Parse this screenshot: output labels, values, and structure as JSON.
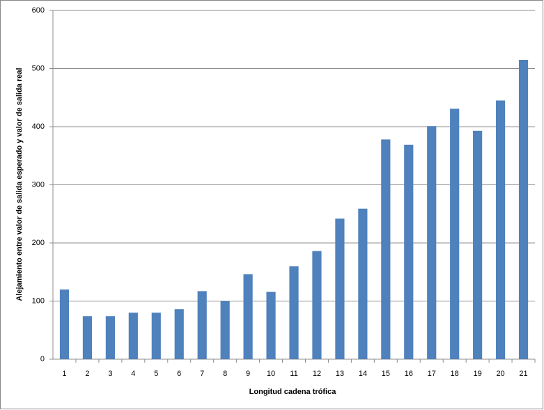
{
  "chart_data": {
    "type": "bar",
    "x_label": "Longitud cadena  trófica",
    "y_label": "Alejamiento entre valor de salida  esperado y valor de salida real",
    "categories": [
      "1",
      "2",
      "3",
      "4",
      "5",
      "6",
      "7",
      "8",
      "9",
      "10",
      "11",
      "12",
      "13",
      "14",
      "15",
      "16",
      "17",
      "18",
      "19",
      "20",
      "21"
    ],
    "values": [
      120,
      74,
      74,
      80,
      80,
      86,
      117,
      100,
      146,
      116,
      160,
      186,
      242,
      259,
      378,
      369,
      401,
      431,
      393,
      445,
      515
    ],
    "color": "#4f81bd",
    "ylim": [
      0,
      600
    ],
    "yticks": [
      0,
      100,
      200,
      300,
      400,
      500,
      600
    ],
    "grid": true
  }
}
